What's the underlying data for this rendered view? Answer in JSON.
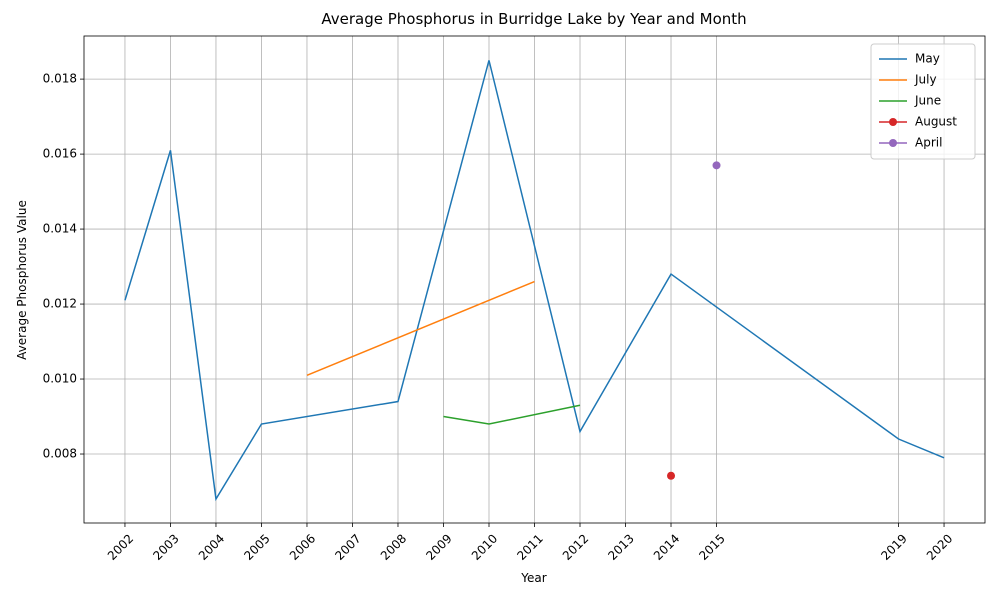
{
  "chart_data": {
    "type": "line",
    "title": "Average Phosphorus in Burridge Lake by Year and Month",
    "x_label": "Year",
    "y_label": "Average Phosphorus Value",
    "xlim": [
      2001.1,
      2020.9
    ],
    "ylim": [
      0.00616,
      0.01915
    ],
    "xticks": [
      2002,
      2003,
      2004,
      2005,
      2006,
      2007,
      2008,
      2009,
      2010,
      2011,
      2012,
      2013,
      2014,
      2015,
      2019,
      2020
    ],
    "yticks": [
      0.008,
      {
        "value": 0.01,
        "label": "0.010"
      },
      0.012,
      0.014,
      0.016,
      0.018
    ],
    "grid": true,
    "legend": "upper-right",
    "series": [
      {
        "name": "May",
        "color": "#1f77b4",
        "marker": false,
        "x": [
          2002,
          2003,
          2004,
          2005,
          2008,
          2010,
          2012,
          2014,
          2019,
          2020
        ],
        "values": [
          0.0121,
          0.0161,
          0.0068,
          0.0088,
          0.0094,
          0.0185,
          0.0086,
          0.0128,
          0.0084,
          0.0079
        ]
      },
      {
        "name": "July",
        "color": "#ff7f0e",
        "marker": false,
        "x": [
          2006,
          2011
        ],
        "values": [
          0.0101,
          0.0126
        ]
      },
      {
        "name": "June",
        "color": "#2ca02c",
        "marker": false,
        "x": [
          2009,
          2010,
          2012
        ],
        "values": [
          0.009,
          0.0088,
          0.0093
        ]
      },
      {
        "name": "August",
        "color": "#d62728",
        "marker": true,
        "x": [
          2014
        ],
        "values": [
          0.00742
        ]
      },
      {
        "name": "April",
        "color": "#9467bd",
        "marker": true,
        "x": [
          2015
        ],
        "values": [
          0.0157
        ]
      }
    ]
  }
}
